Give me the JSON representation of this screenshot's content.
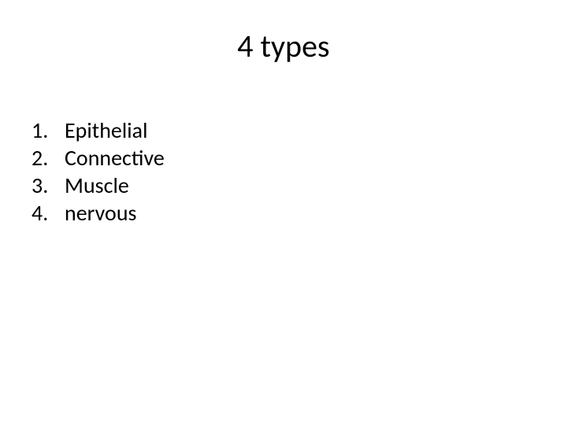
{
  "slide": {
    "title": "4 types",
    "title_fontsize": 40,
    "title_color": "#000000",
    "background_color": "#ffffff",
    "list_fontsize": 28,
    "list_color": "#000000",
    "items": [
      {
        "num": "1.",
        "text": "Epithelial"
      },
      {
        "num": "2.",
        "text": "Connective"
      },
      {
        "num": "3.",
        "text": "Muscle"
      },
      {
        "num": "4.",
        "text": "nervous"
      }
    ]
  }
}
